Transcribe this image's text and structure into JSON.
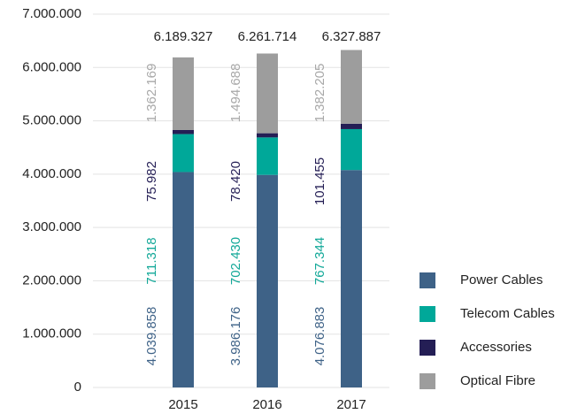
{
  "chart_data": {
    "type": "stacked_bar",
    "categories": [
      "2015",
      "2016",
      "2017"
    ],
    "series": [
      {
        "name": "Power Cables",
        "color": "#3e6287",
        "label_color": "#3e6287",
        "values": [
          4039858,
          3986176,
          4076883
        ],
        "value_labels": [
          "4.039.858",
          "3.986.176",
          "4.076.883"
        ]
      },
      {
        "name": "Telecom Cables",
        "color": "#00a899",
        "label_color": "#12a898",
        "values": [
          711318,
          702430,
          767344
        ],
        "value_labels": [
          "711.318",
          "702.430",
          "767.344"
        ]
      },
      {
        "name": "Accessories",
        "color": "#241e55",
        "label_color": "#241e55",
        "values": [
          75982,
          78420,
          101455
        ],
        "value_labels": [
          "75.982",
          "78.420",
          "101.455"
        ]
      },
      {
        "name": "Optical Fibre",
        "color": "#9d9d9d",
        "label_color": "#a8a8a8",
        "values": [
          1362169,
          1494688,
          1382205
        ],
        "value_labels": [
          "1.362.169",
          "1.494.688",
          "1.382.205"
        ]
      }
    ],
    "totals": [
      6189327,
      6261714,
      6327887
    ],
    "total_labels": [
      "6.189.327",
      "6.261.714",
      "6.327.887"
    ],
    "ylim": [
      0,
      7000000
    ],
    "yticks": [
      0,
      {
        "value": 1000000,
        "label": "1.000.000"
      },
      {
        "value": 2000000,
        "label": "2.000.000"
      },
      {
        "value": 3000000,
        "label": "3.000.000"
      },
      {
        "value": 4000000,
        "label": "4.000.000"
      },
      {
        "value": 5000000,
        "label": "5.000.000"
      },
      {
        "value": 6000000,
        "label": "6.000.000"
      },
      {
        "value": 7000000,
        "label": "7.000.000"
      }
    ],
    "grid": true,
    "legend": "right"
  }
}
